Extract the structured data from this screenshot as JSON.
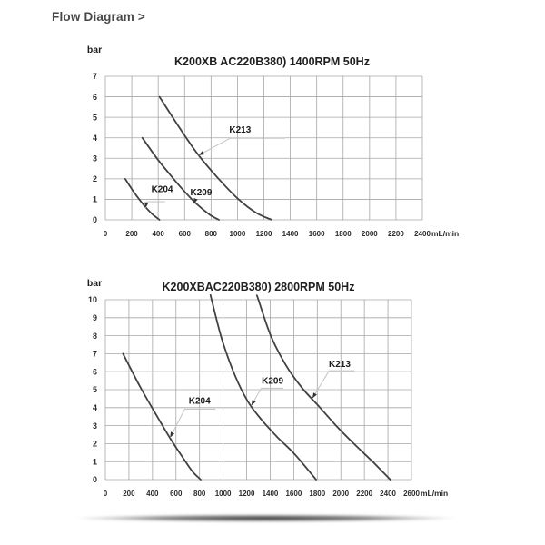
{
  "page": {
    "header": "Flow Diagram >"
  },
  "colors": {
    "grid": "#a6a6a6",
    "curve": "#414141",
    "leader": "#c8c8c8",
    "arrow": "#333333",
    "tick_text": "#2b2b2b",
    "title_text": "#1f1f1f",
    "heading_text": "#474747"
  },
  "chart_data": [
    {
      "type": "line",
      "title": "K200XB AC220B380) 1400RPM 50Hz",
      "y_unit": "bar",
      "x_unit": "mL/min",
      "xlim": [
        0,
        2400
      ],
      "ylim": [
        0,
        7
      ],
      "xticks": [
        0,
        200,
        400,
        600,
        800,
        1000,
        1200,
        1400,
        1600,
        1800,
        2000,
        2200,
        2400
      ],
      "yticks": [
        0,
        1,
        2,
        3,
        4,
        5,
        6,
        7
      ],
      "grid": true,
      "legend": "inline-callouts",
      "series": [
        {
          "name": "K204",
          "points": [
            [
              150,
              2
            ],
            [
              200,
              1.5
            ],
            [
              250,
              1.05
            ],
            [
              300,
              0.65
            ],
            [
              355,
              0.28
            ],
            [
              410,
              0
            ]
          ]
        },
        {
          "name": "K209",
          "points": [
            [
              280,
              4
            ],
            [
              390,
              3.0
            ],
            [
              490,
              2.2
            ],
            [
              590,
              1.45
            ],
            [
              690,
              0.78
            ],
            [
              790,
              0.25
            ],
            [
              860,
              0
            ]
          ]
        },
        {
          "name": "K213",
          "points": [
            [
              410,
              6
            ],
            [
              550,
              4.6
            ],
            [
              700,
              3.2
            ],
            [
              850,
              2.05
            ],
            [
              1000,
              1.05
            ],
            [
              1140,
              0.35
            ],
            [
              1260,
              0
            ]
          ]
        }
      ],
      "callouts": [
        {
          "text": "K204",
          "tx": 430,
          "ty": 1.5,
          "leader": [
            [
              452,
              0.88
            ],
            [
              312,
              0.88
            ],
            [
              305,
              0.58
            ]
          ]
        },
        {
          "text": "K209",
          "tx": 725,
          "ty": 1.35,
          "leader": [
            [
              685,
              1.02
            ],
            [
              668,
              0.78
            ]
          ]
        },
        {
          "text": "K213",
          "tx": 1020,
          "ty": 4.4,
          "leader": [
            [
              1360,
              3.98
            ],
            [
              945,
              3.98
            ],
            [
              706,
              3.15
            ]
          ]
        }
      ]
    },
    {
      "type": "line",
      "title": "K200XBAC220B380) 2800RPM 50Hz",
      "y_unit": "bar",
      "x_unit": "mL/min",
      "xlim": [
        0,
        2600
      ],
      "ylim": [
        0,
        10
      ],
      "xticks": [
        0,
        200,
        400,
        600,
        800,
        1000,
        1200,
        1400,
        1600,
        1800,
        2000,
        2200,
        2400,
        2600
      ],
      "yticks": [
        0,
        1,
        2,
        3,
        4,
        5,
        6,
        7,
        8,
        9,
        10
      ],
      "grid": true,
      "legend": "inline-callouts",
      "series": [
        {
          "name": "K204",
          "points": [
            [
              150,
              7
            ],
            [
              300,
              5.1
            ],
            [
              450,
              3.4
            ],
            [
              550,
              2.3
            ],
            [
              650,
              1.3
            ],
            [
              740,
              0.45
            ],
            [
              810,
              0
            ]
          ]
        },
        {
          "name": "K209",
          "enters_from_top": true,
          "points": [
            [
              903,
              10
            ],
            [
              990,
              7.8
            ],
            [
              1100,
              5.8
            ],
            [
              1210,
              4.35
            ],
            [
              1330,
              3.3
            ],
            [
              1470,
              2.3
            ],
            [
              1610,
              1.4
            ],
            [
              1790,
              0
            ]
          ]
        },
        {
          "name": "K213",
          "enters_from_top": true,
          "points": [
            [
              1300,
              10
            ],
            [
              1405,
              8.0
            ],
            [
              1530,
              6.4
            ],
            [
              1670,
              5.1
            ],
            [
              1810,
              4.1
            ],
            [
              1960,
              3.0
            ],
            [
              2110,
              2.0
            ],
            [
              2270,
              1.0
            ],
            [
              2420,
              0
            ]
          ]
        }
      ],
      "callouts": [
        {
          "text": "K204",
          "tx": 800,
          "ty": 4.4,
          "leader": [
            [
              935,
              3.92
            ],
            [
              675,
              3.92
            ],
            [
              550,
              2.34
            ]
          ]
        },
        {
          "text": "K209",
          "tx": 1420,
          "ty": 5.5,
          "leader": [
            [
              1512,
              5.08
            ],
            [
              1325,
              5.08
            ],
            [
              1240,
              4.12
            ]
          ]
        },
        {
          "text": "K213",
          "tx": 1990,
          "ty": 6.45,
          "leader": [
            [
              2115,
              6.05
            ],
            [
              1900,
              6.05
            ],
            [
              1758,
              4.52
            ]
          ]
        }
      ]
    }
  ]
}
